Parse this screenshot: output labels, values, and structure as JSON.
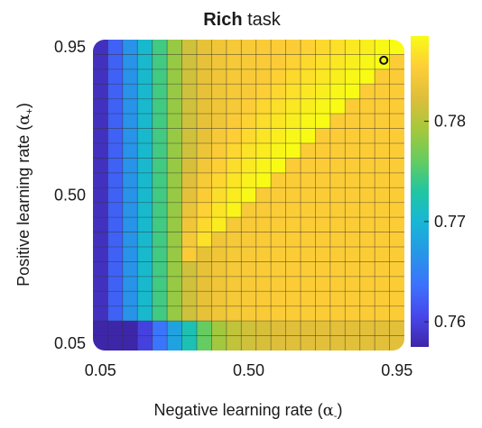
{
  "chart_data": {
    "type": "heatmap",
    "title_bold": "Rich",
    "title_rest": " task",
    "xlabel_main": "Negative learning rate (",
    "xlabel_greek": "α",
    "xlabel_sub": "-",
    "xlabel_close": ")",
    "ylabel_main": "Positive learning rate (",
    "ylabel_greek": "α",
    "ylabel_sub": "+",
    "ylabel_close": ")",
    "grid_size": 21,
    "xlim": [
      0.05,
      0.95
    ],
    "ylim": [
      0.05,
      0.95
    ],
    "x_ticks": [
      {
        "value": 0.05,
        "label": "0.05"
      },
      {
        "value": 0.5,
        "label": "0.50"
      },
      {
        "value": 0.95,
        "label": "0.95"
      }
    ],
    "y_ticks": [
      {
        "value": 0.05,
        "label": "0.05"
      },
      {
        "value": 0.5,
        "label": "0.50"
      },
      {
        "value": 0.95,
        "label": "0.95"
      }
    ],
    "colorbar": {
      "min": 0.7575,
      "max": 0.7885,
      "ticks": [
        {
          "value": 0.76,
          "label": "0.76"
        },
        {
          "value": 0.77,
          "label": "0.77"
        },
        {
          "value": 0.78,
          "label": "0.78"
        }
      ],
      "colormap": "parula"
    },
    "column_profile": [
      0.7585,
      0.7625,
      0.7665,
      0.7705,
      0.7745,
      0.7785,
      0.7815,
      0.7832,
      0.784,
      0.7845,
      0.7848,
      0.785,
      0.7851,
      0.7852,
      0.7852,
      0.7852,
      0.7852,
      0.7852,
      0.7852,
      0.7852,
      0.7852
    ],
    "grid_on": true,
    "best_marker": {
      "x": 0.91,
      "y": 0.91
    }
  }
}
